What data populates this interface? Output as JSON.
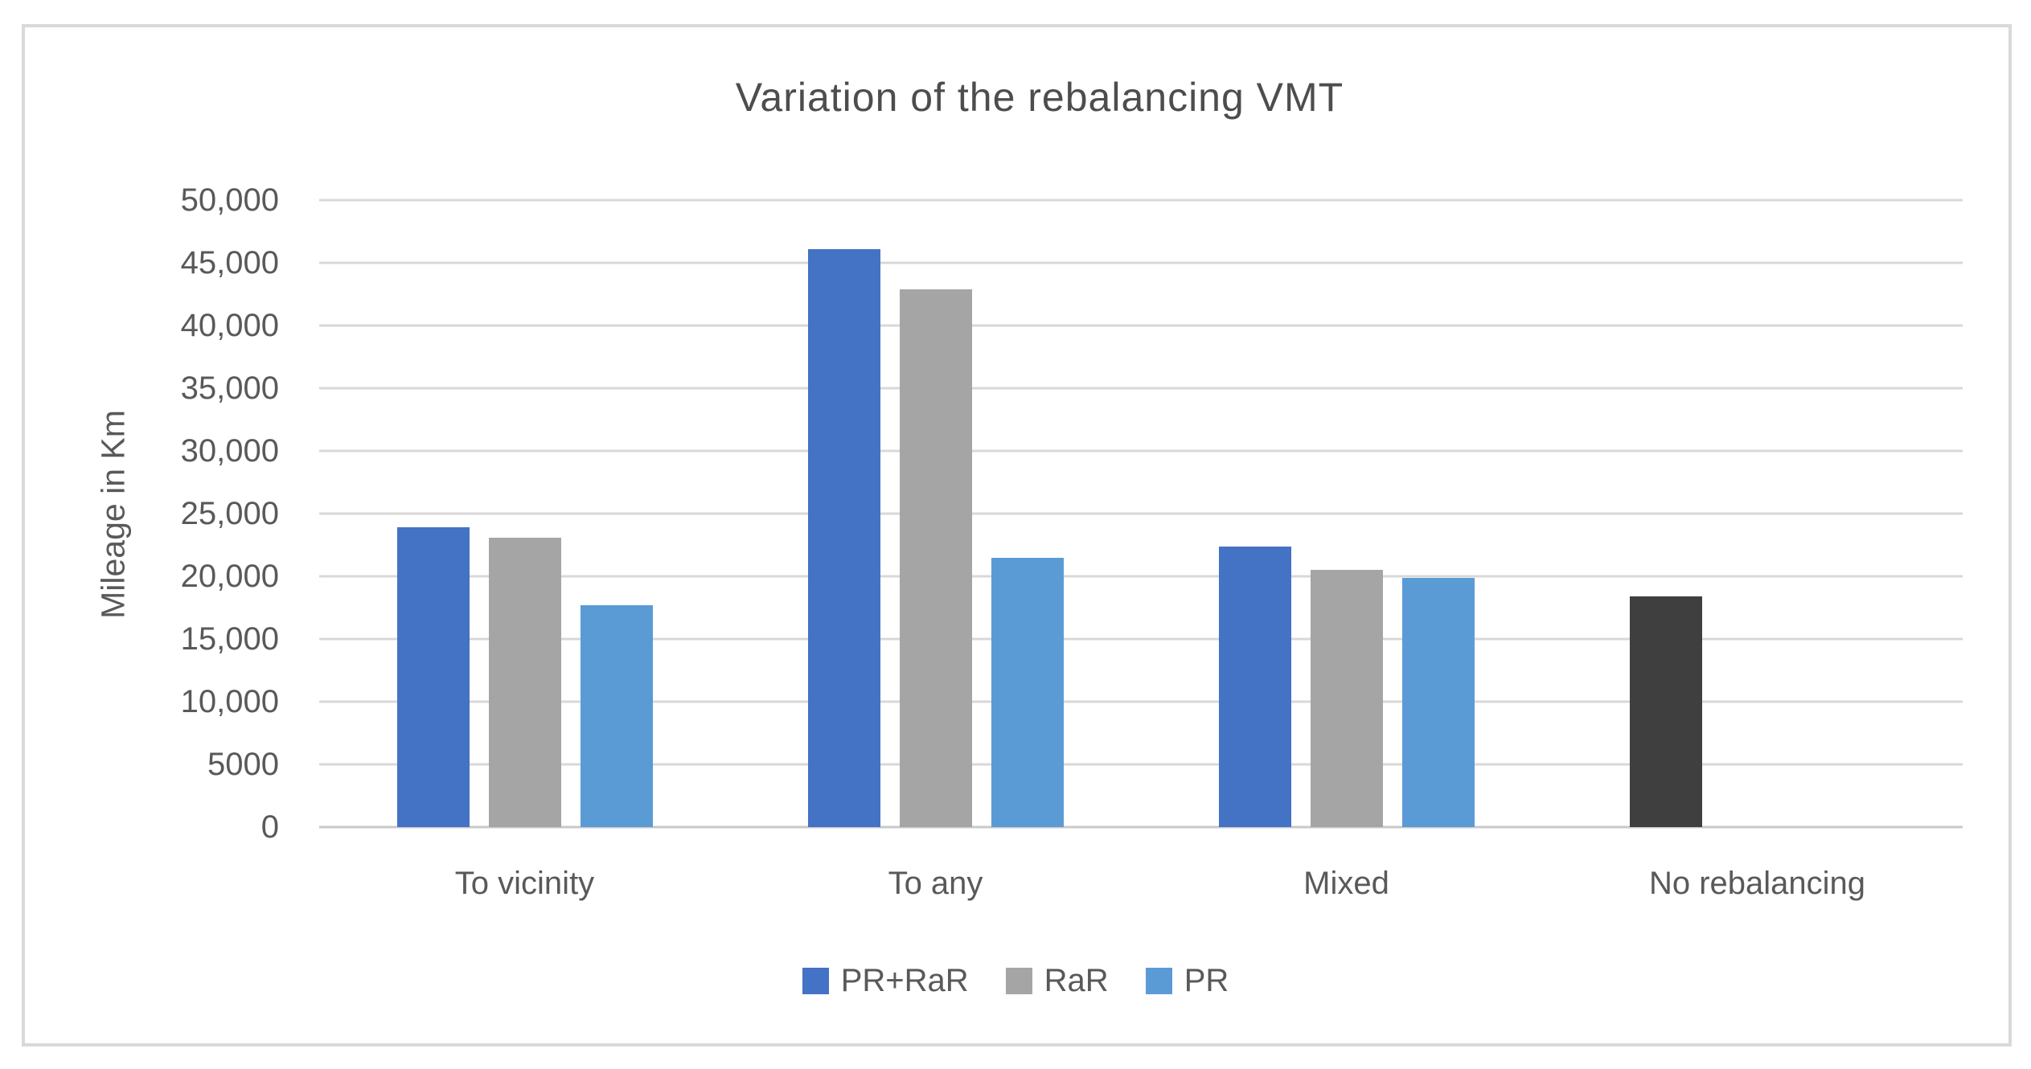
{
  "chart_data": {
    "type": "bar",
    "title": "Variation of the rebalancing VMT",
    "ylabel": "Mileage in Km",
    "xlabel": "",
    "categories": [
      "To vicinity",
      "To any",
      "Mixed",
      "No rebalancing"
    ],
    "series": [
      {
        "name": "PR+RaR",
        "color": "#4472C4",
        "values": [
          23900,
          46100,
          22400,
          null
        ]
      },
      {
        "name": "RaR",
        "color": "#A5A5A5",
        "values": [
          23100,
          42900,
          20500,
          null
        ]
      },
      {
        "name": "PR",
        "color": "#5B9BD5",
        "values": [
          17700,
          21500,
          19900,
          null
        ]
      },
      {
        "name": "No rebalancing",
        "color": "#3F3F3F",
        "values": [
          null,
          null,
          null,
          18400
        ]
      }
    ],
    "slot_map": [
      [
        0,
        1,
        2
      ],
      [
        0,
        1,
        2
      ],
      [
        0,
        1,
        2
      ],
      [
        3,
        -1,
        -1
      ]
    ],
    "legend_entries": [
      "PR+RaR",
      "RaR",
      "PR"
    ],
    "legend_position": "bottom",
    "grid": true,
    "ylim": [
      0,
      50000
    ],
    "ytick_interval": 5000,
    "ytick_labels": [
      "0",
      "5000",
      "10,000",
      "15,000",
      "20,000",
      "25,000",
      "30,000",
      "35,000",
      "40,000",
      "45,000",
      "50,000"
    ]
  },
  "frame": {
    "border_color": "#d9d9d9"
  },
  "text_colors": {
    "title": "#4d4d4d",
    "axis": "#595959"
  }
}
